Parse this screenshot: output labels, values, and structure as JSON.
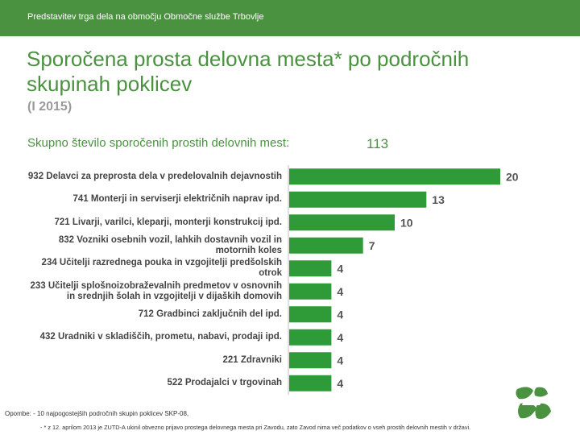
{
  "header": {
    "text": "Predstavitev trga dela na območju Območne službe Trbovlje"
  },
  "title": "Sporočena prosta delovna mesta* po področnih skupinah poklicev",
  "subtitle": "(I 2015)",
  "total": {
    "label": "Skupno število sporočenih prostih delovnih mest:",
    "value": "113"
  },
  "colors": {
    "brand": "#4a9140",
    "bar": "#2f9b38",
    "bg": "#ffffff"
  },
  "chart_data": {
    "type": "bar",
    "orientation": "horizontal",
    "categories": [
      "932 Delavci za preprosta dela v predelovalnih dejavnostih",
      "741 Monterji in serviserji električnih naprav ipd.",
      "721 Livarji, varilci, kleparji, monterji konstrukcij ipd.",
      "832 Vozniki osebnih vozil, lahkih dostavnih vozil in motornih koles",
      "234 Učitelji razrednega pouka in vzgojitelji predšolskih otrok",
      "233 Učitelji splošnoizobraževalnih predmetov v osnovnih in srednjih šolah in vzgojitelji v dijaških domovih",
      "712 Gradbinci zaključnih del ipd.",
      "432 Uradniki v skladiščih, prometu, nabavi, prodaji ipd.",
      "221 Zdravniki",
      "522 Prodajalci v trgovinah"
    ],
    "values": [
      20,
      13,
      10,
      7,
      4,
      4,
      4,
      4,
      4,
      4
    ],
    "data_labels": true,
    "grid": false
  },
  "footnotes": {
    "line1": "Opombe: - 10 najpogostejših področnih skupin poklicev SKP-08,",
    "line2": "- * z 12. aprilom 2013 je ZUTD-A ukinil obvezno prijavo prostega delovnega mesta pri Zavodu, zato Zavod nima več podatkov o vseh prostih delovnih mestih v državi."
  },
  "logo": {
    "icon": "zrsz-logo-icon"
  }
}
